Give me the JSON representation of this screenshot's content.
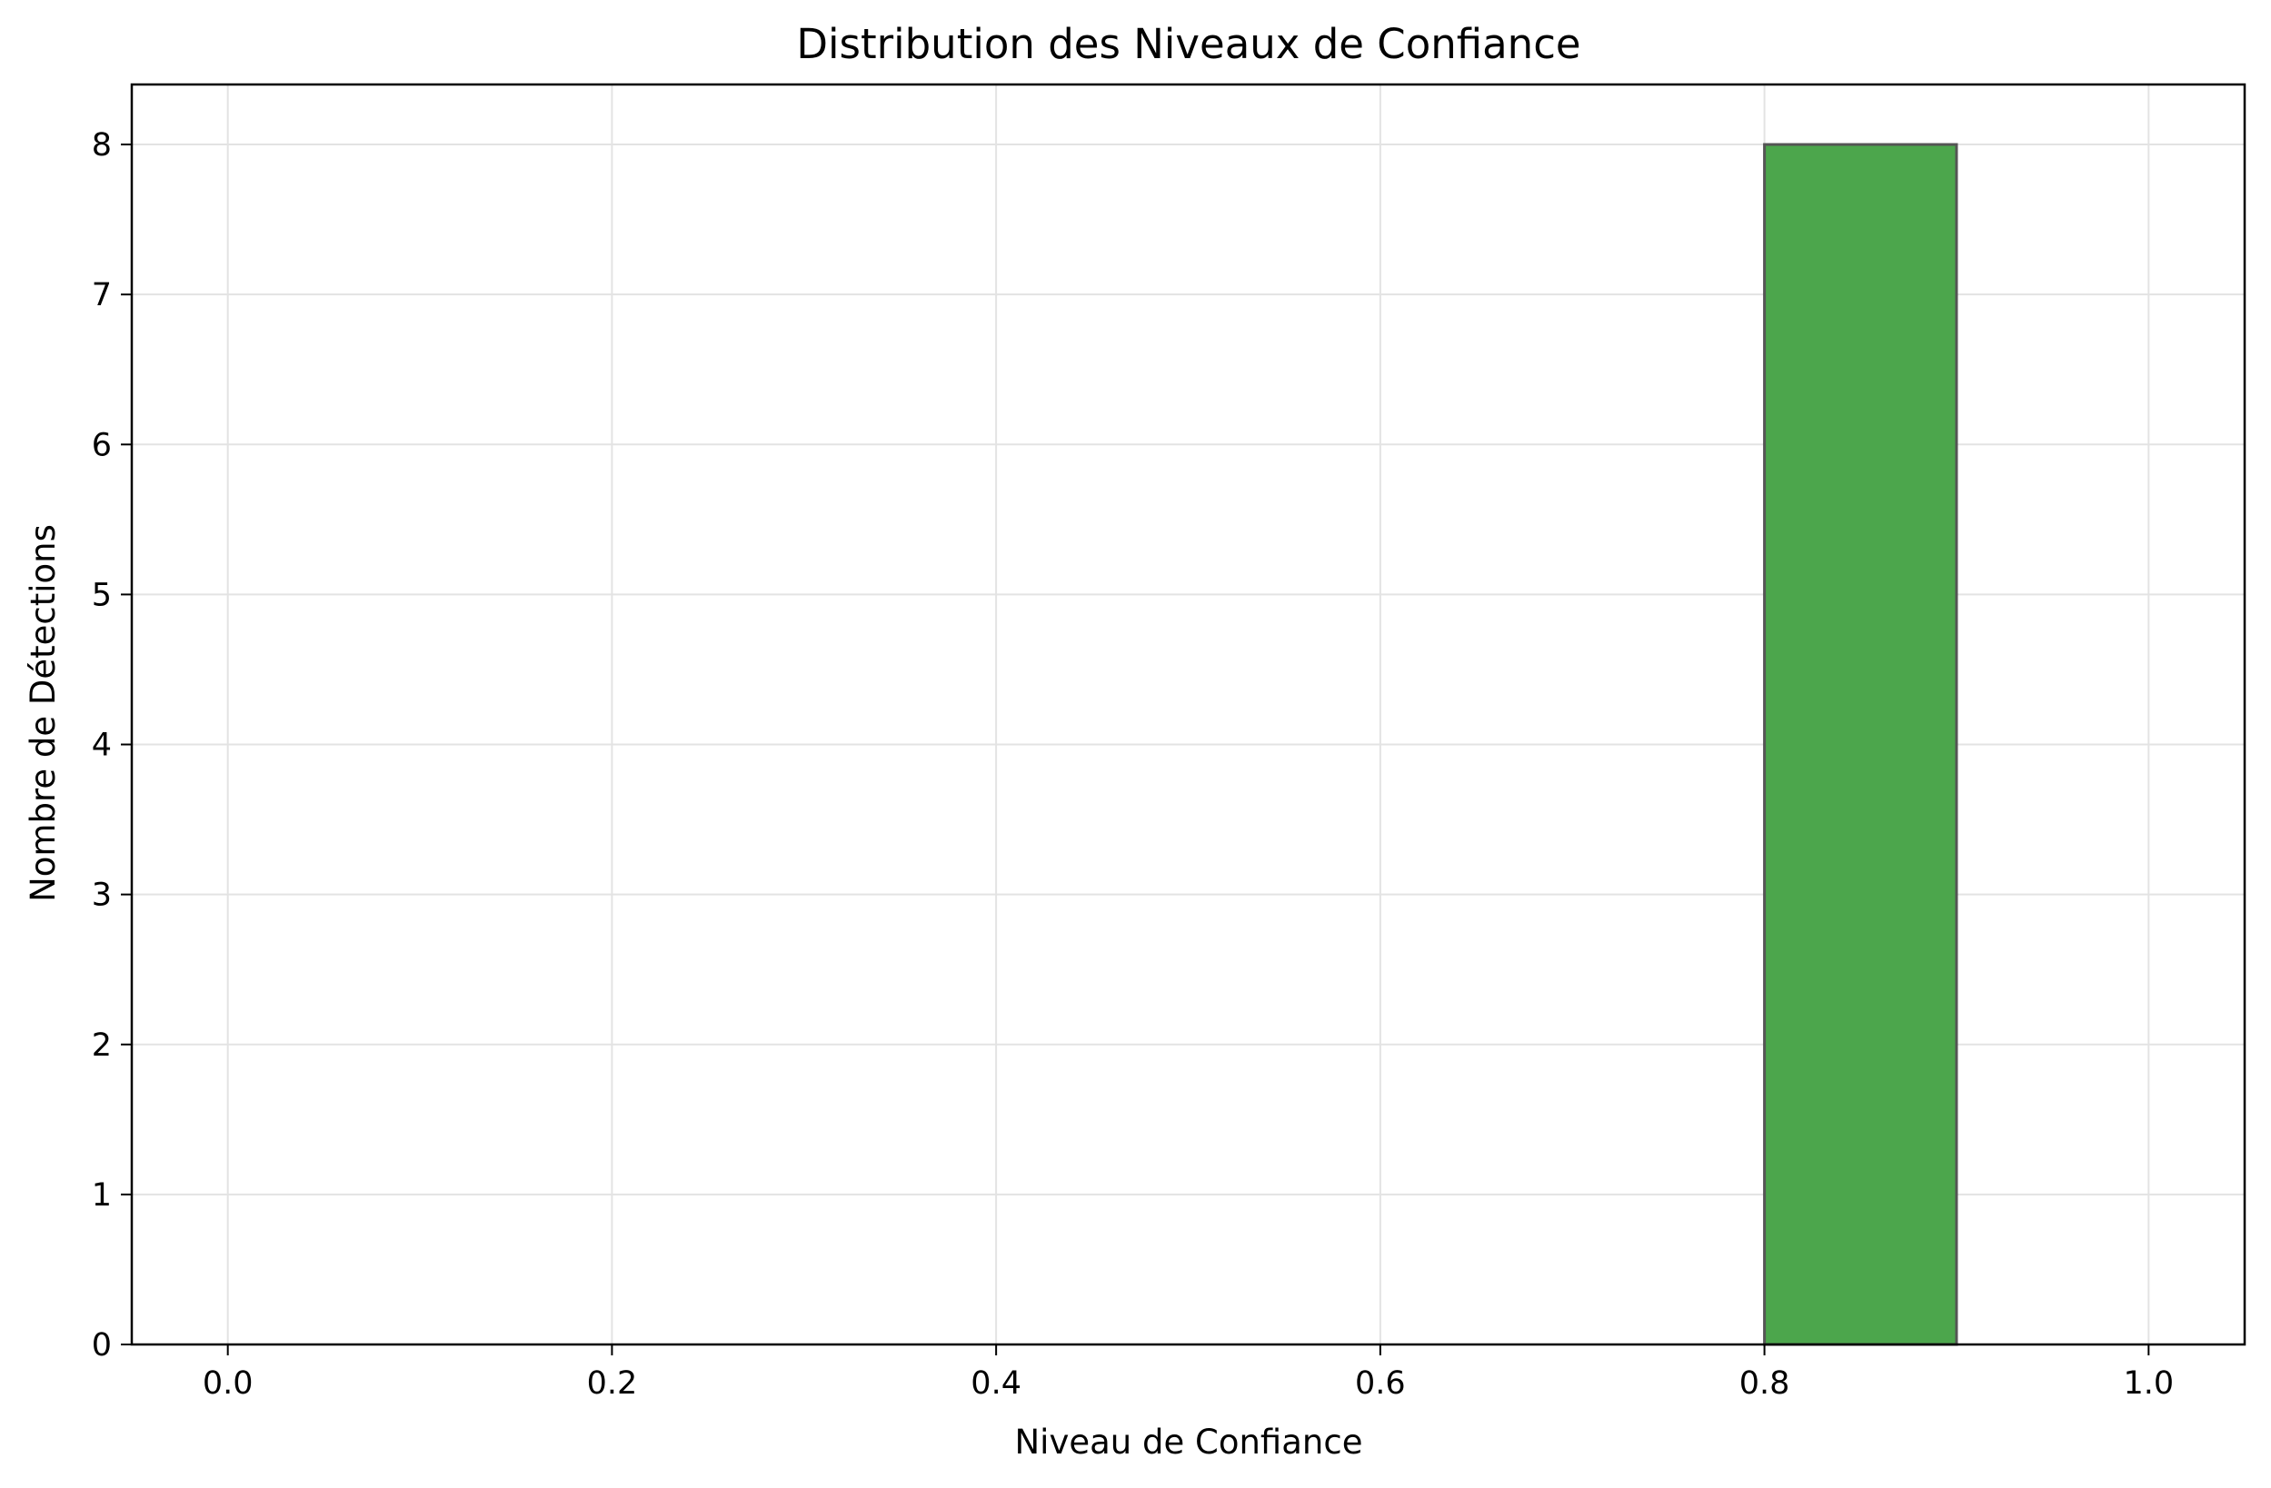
{
  "chart_data": {
    "type": "bar",
    "title": "Distribution des Niveaux de Confiance",
    "xlabel": "Niveau de Confiance",
    "ylabel": "Nombre de Détections",
    "xlim": [
      -0.05,
      1.05
    ],
    "ylim": [
      0,
      8.4
    ],
    "xticks": [
      "0.0",
      "0.2",
      "0.4",
      "0.6",
      "0.8",
      "1.0"
    ],
    "xtick_values": [
      0.0,
      0.2,
      0.4,
      0.6,
      0.8,
      1.0
    ],
    "yticks": [
      "0",
      "1",
      "2",
      "3",
      "4",
      "5",
      "6",
      "7",
      "8"
    ],
    "ytick_values": [
      0,
      1,
      2,
      3,
      4,
      5,
      6,
      7,
      8
    ],
    "bins": [
      {
        "x0": 0.8,
        "x1": 0.9,
        "value": 8
      }
    ],
    "grid": true,
    "bar_color": "#4ca64c",
    "bar_edge_color": "#555555"
  }
}
